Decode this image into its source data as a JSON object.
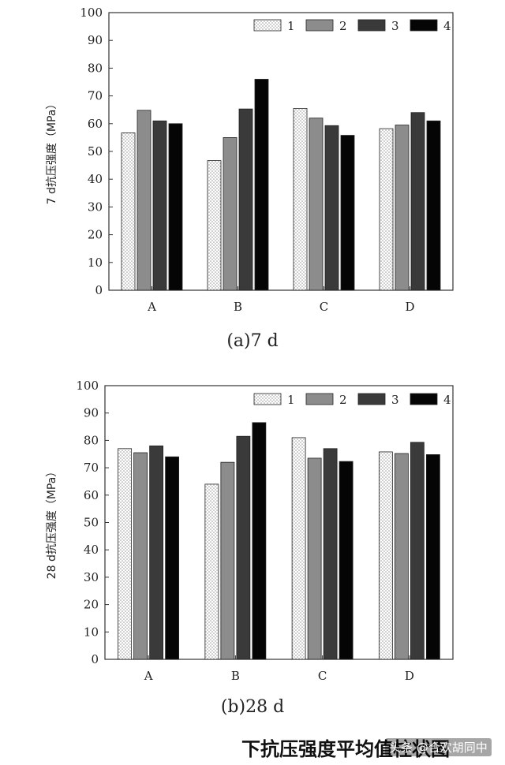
{
  "chart_data": [
    {
      "type": "bar",
      "categories": [
        "A",
        "B",
        "C",
        "D"
      ],
      "series": [
        {
          "name": "1",
          "values": [
            56.7,
            46.7,
            65.5,
            58.2
          ]
        },
        {
          "name": "2",
          "values": [
            64.8,
            55.0,
            62.0,
            59.5
          ]
        },
        {
          "name": "3",
          "values": [
            61.0,
            65.3,
            59.3,
            64.0
          ]
        },
        {
          "name": "4",
          "values": [
            60.0,
            76.0,
            55.8,
            61.0
          ]
        }
      ],
      "title": "",
      "xlabel": "",
      "ylabel": "7 d抗压强度（MPa）",
      "ylim": [
        0,
        100
      ],
      "yticks": [
        0,
        10,
        20,
        30,
        40,
        50,
        60,
        70,
        80,
        90,
        100
      ],
      "legend_position": "top-right",
      "grid": false,
      "caption": "(a)7 d"
    },
    {
      "type": "bar",
      "categories": [
        "A",
        "B",
        "C",
        "D"
      ],
      "series": [
        {
          "name": "1",
          "values": [
            77.0,
            64.0,
            81.0,
            75.8
          ]
        },
        {
          "name": "2",
          "values": [
            75.5,
            72.0,
            73.5,
            75.2
          ]
        },
        {
          "name": "3",
          "values": [
            78.0,
            81.5,
            77.0,
            79.3
          ]
        },
        {
          "name": "4",
          "values": [
            74.0,
            86.5,
            72.3,
            74.8
          ]
        }
      ],
      "title": "",
      "xlabel": "",
      "ylabel": "28 d抗压强度（MPa）",
      "ylim": [
        0,
        100
      ],
      "yticks": [
        0,
        10,
        20,
        30,
        40,
        50,
        60,
        70,
        80,
        90,
        100
      ],
      "legend_position": "top-right",
      "grid": false,
      "caption": "(b)28 d"
    }
  ],
  "series_colors": [
    "#ffffff",
    "#8c8c8c",
    "#3a3a3a",
    "#050505"
  ],
  "footer": {
    "title": "下抗压强度平均值柱状图",
    "watermark": "头条 @合欢胡同中"
  }
}
